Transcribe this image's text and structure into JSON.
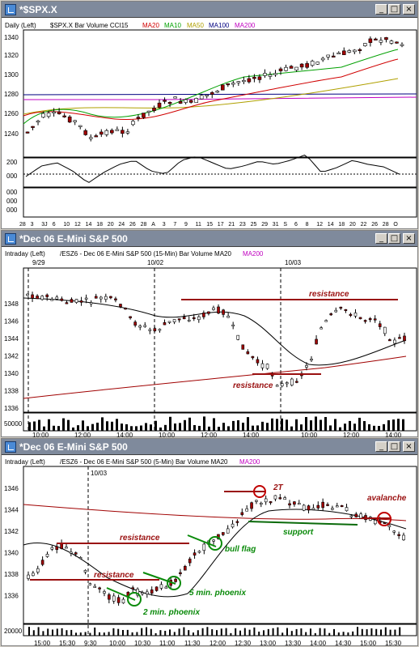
{
  "windows": [
    {
      "title": "*$SPX.X",
      "header": [
        "Daily  (Left)",
        "$SPX.X  Bar  Volume  CCI15",
        "MA20",
        "MA10",
        "MA50",
        "MA100",
        "MA200"
      ],
      "price_ticks": [
        "1340",
        "1320",
        "1300",
        "1280",
        "1260",
        "1240"
      ],
      "cci_ticks": [
        "200",
        "000"
      ],
      "vol_ticks": [
        "000",
        "000",
        "000"
      ],
      "x_ticks": [
        "28",
        "3",
        "3J",
        "6",
        "10",
        "12",
        "14",
        "18",
        "20",
        "24",
        "26",
        "28",
        "A",
        "3",
        "7",
        "9",
        "11",
        "15",
        "17",
        "21",
        "23",
        "25",
        "29",
        "31",
        "S",
        "6",
        "8",
        "12",
        "14",
        "18",
        "20",
        "22",
        "26",
        "28",
        "O"
      ]
    },
    {
      "title": "*Dec 06  E-Mini S&P 500",
      "header": [
        "Intraday  (Left)",
        "/ESZ6 - Dec 06  E-Mini S&P 500 (15-Min)  Bar  Volume  MA20",
        "MA200"
      ],
      "price_ticks": [
        "1348",
        "1346",
        "1344",
        "1342",
        "1340",
        "1338",
        "1336"
      ],
      "vol_ticks": [
        "50000"
      ],
      "date_labels": [
        "9/29",
        "10/02",
        "10/03"
      ],
      "x_ticks": [
        "10:00",
        "12:00",
        "14:00",
        "10:00",
        "12:00",
        "14:00",
        "10:00",
        "12:00",
        "14:00"
      ],
      "annotations": [
        "resistance",
        "resistance"
      ]
    },
    {
      "title": "*Dec 06  E-Mini S&P 500",
      "header": [
        "Intraday  (Left)",
        "/ESZ6 - Dec 06  E-Mini S&P 500 (5-Min)  Bar  Volume  MA20",
        "MA200"
      ],
      "price_ticks": [
        "1346",
        "1344",
        "1342",
        "1340",
        "1338",
        "1336"
      ],
      "vol_ticks": [
        "20000"
      ],
      "date_labels": [
        "10/03"
      ],
      "x_ticks": [
        "15:00",
        "15:30",
        "9:30",
        "10:00",
        "10:30",
        "11:00",
        "11:30",
        "12:00",
        "12:30",
        "13:00",
        "13:30",
        "14:00",
        "14:30",
        "15:00",
        "15:30"
      ],
      "annotations": [
        "2T",
        "avalanche",
        "resistance",
        "support",
        "bull flag",
        "resistance",
        "5 min. phoenix",
        "2 min. phoenix"
      ]
    }
  ],
  "colors": {
    "ma20": "#d00000",
    "ma10": "#00a000",
    "ma50": "#b0a000",
    "ma100": "#000080",
    "ma200": "#c000c0",
    "up": "#ffffff",
    "down": "#a00000",
    "annot_red": "#9a1010",
    "annot_green": "#0a8a0a"
  }
}
